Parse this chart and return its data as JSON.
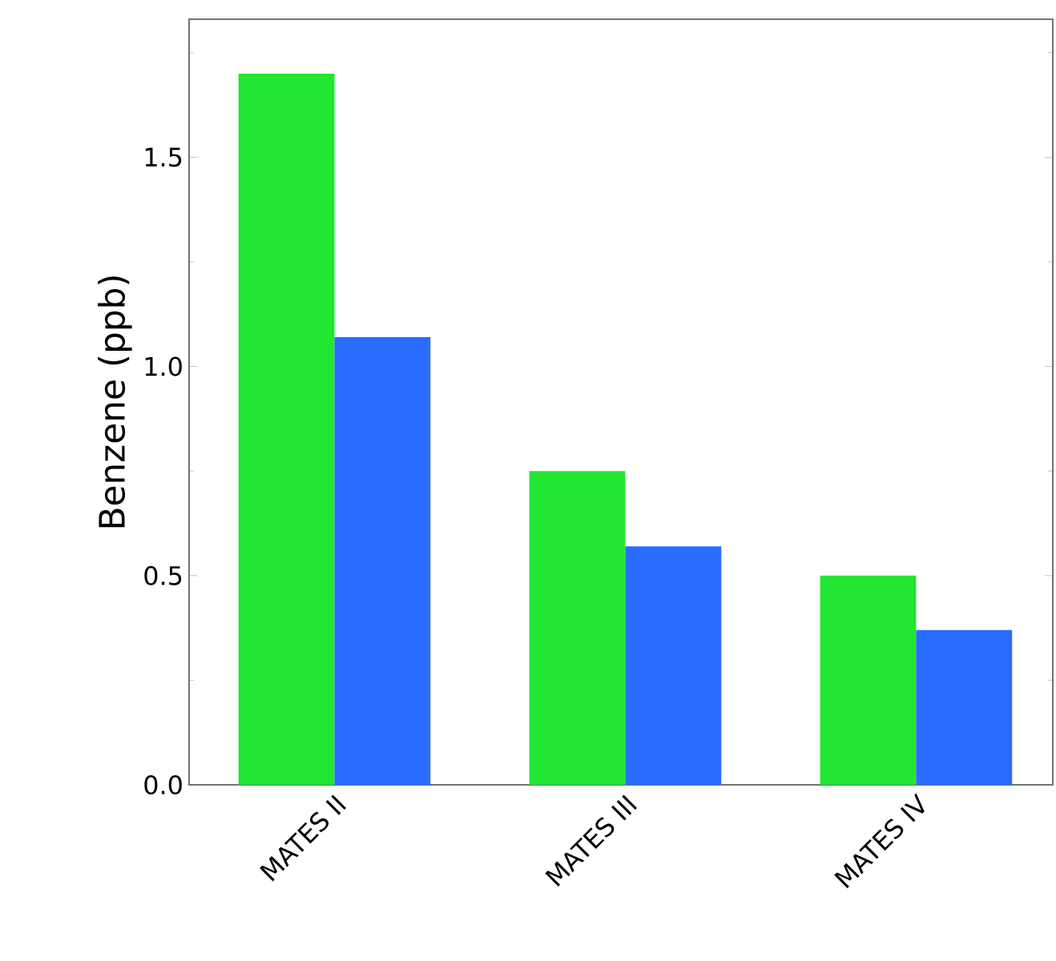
{
  "chart_data": {
    "type": "bar",
    "ylabel": "Benzene (ppb)",
    "categories": [
      "MATES II",
      "MATES III",
      "MATES IV"
    ],
    "series": [
      {
        "color": "#22e632",
        "values": [
          1.7,
          0.75,
          0.5
        ]
      },
      {
        "color": "#2a6cff",
        "values": [
          1.07,
          0.57,
          0.37
        ]
      }
    ],
    "ylim": [
      0,
      1.83
    ],
    "yticks": [
      {
        "value": 0,
        "label": "0.0"
      },
      {
        "value": 0.25,
        "label": null
      },
      {
        "value": 0.5,
        "label": "0.5"
      },
      {
        "value": 0.75,
        "label": null
      },
      {
        "value": 1.0,
        "label": "1.0"
      },
      {
        "value": 1.25,
        "label": null
      },
      {
        "value": 1.5,
        "label": "1.5"
      },
      {
        "value": 1.75,
        "label": null
      }
    ],
    "marker": "none"
  }
}
